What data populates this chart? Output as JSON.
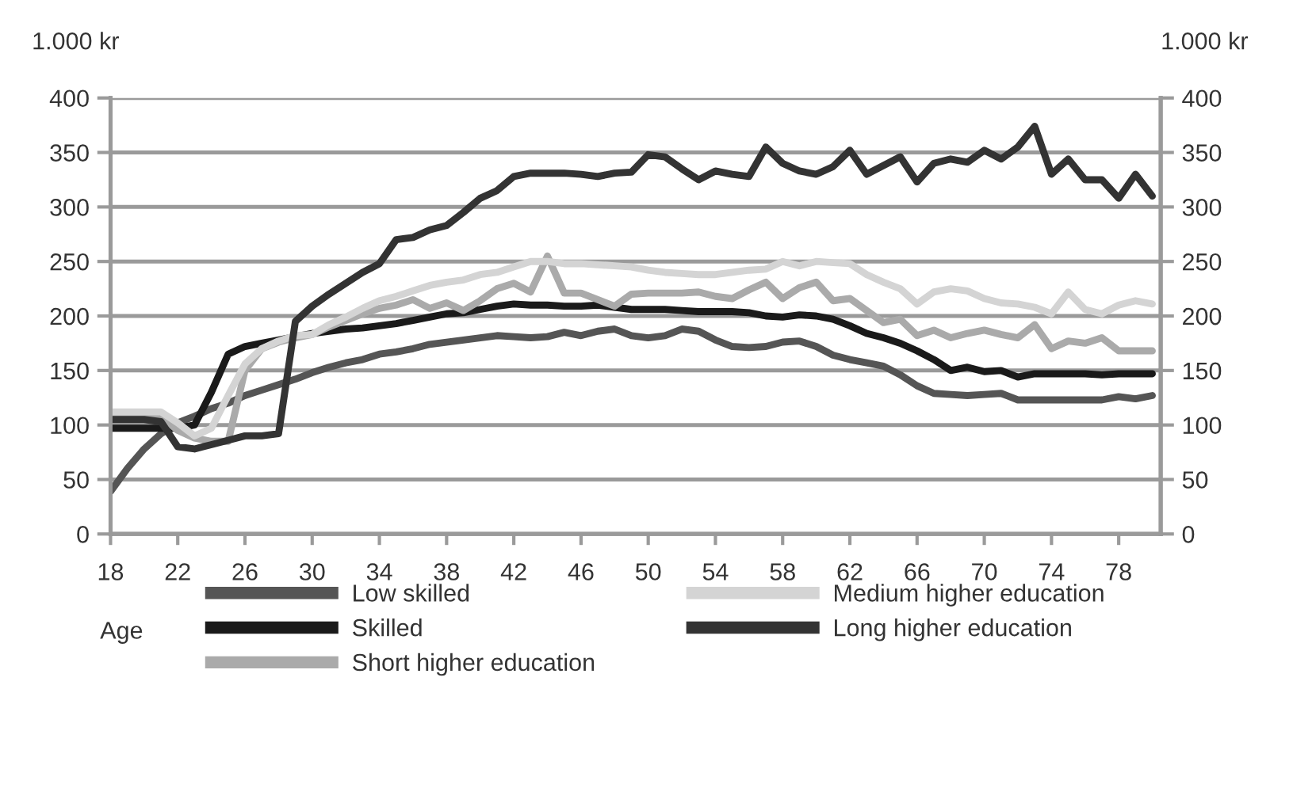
{
  "chart_data": {
    "type": "line",
    "xlabel": "Age",
    "ylabel": "1.000 kr",
    "y2label": "1.000 kr",
    "x": [
      18,
      19,
      20,
      21,
      22,
      23,
      24,
      25,
      26,
      27,
      28,
      29,
      30,
      31,
      32,
      33,
      34,
      35,
      36,
      37,
      38,
      39,
      40,
      41,
      42,
      43,
      44,
      45,
      46,
      47,
      48,
      49,
      50,
      51,
      52,
      53,
      54,
      55,
      56,
      57,
      58,
      59,
      60,
      61,
      62,
      63,
      64,
      65,
      66,
      67,
      68,
      69,
      70,
      71,
      72,
      73,
      74,
      75,
      76,
      77,
      78,
      79,
      80
    ],
    "series": [
      {
        "name": "Low skilled",
        "color": "#555555",
        "values": [
          39,
          60,
          78,
          92,
          102,
          108,
          115,
          120,
          127,
          132,
          137,
          142,
          148,
          153,
          157,
          160,
          165,
          167,
          170,
          174,
          176,
          178,
          180,
          182,
          181,
          180,
          181,
          185,
          182,
          186,
          188,
          182,
          180,
          182,
          188,
          186,
          178,
          172,
          171,
          172,
          176,
          177,
          172,
          164,
          160,
          157,
          154,
          146,
          136,
          129,
          128,
          127,
          128,
          129,
          123,
          123,
          123,
          123,
          123,
          123,
          126,
          124,
          127
        ]
      },
      {
        "name": "Skilled",
        "color": "#1a1a1a",
        "values": [
          97,
          97,
          97,
          97,
          97,
          100,
          130,
          165,
          172,
          175,
          178,
          181,
          184,
          186,
          188,
          189,
          191,
          193,
          196,
          199,
          202,
          203,
          206,
          209,
          211,
          210,
          210,
          209,
          209,
          210,
          208,
          206,
          206,
          206,
          205,
          204,
          204,
          204,
          203,
          200,
          199,
          201,
          200,
          197,
          191,
          184,
          180,
          175,
          168,
          160,
          150,
          153,
          149,
          150,
          144,
          147,
          147,
          147,
          147,
          146,
          147,
          147,
          147
        ]
      },
      {
        "name": "Short higher education",
        "color": "#aaaaaa",
        "values": [
          110,
          110,
          110,
          108,
          95,
          88,
          85,
          85,
          150,
          170,
          176,
          180,
          183,
          190,
          196,
          202,
          207,
          210,
          215,
          207,
          212,
          205,
          214,
          225,
          230,
          222,
          255,
          221,
          221,
          215,
          209,
          220,
          221,
          221,
          221,
          222,
          218,
          216,
          224,
          231,
          216,
          226,
          231,
          214,
          216,
          205,
          194,
          197,
          182,
          187,
          180,
          184,
          187,
          183,
          180,
          192,
          170,
          177,
          175,
          180,
          168,
          168,
          168
        ]
      },
      {
        "name": "Medium higher education",
        "color": "#d4d4d4",
        "values": [
          112,
          112,
          112,
          112,
          102,
          90,
          97,
          127,
          156,
          170,
          177,
          182,
          183,
          192,
          199,
          207,
          214,
          218,
          223,
          228,
          231,
          233,
          238,
          240,
          245,
          250,
          250,
          248,
          248,
          247,
          246,
          245,
          242,
          240,
          239,
          238,
          238,
          240,
          242,
          243,
          250,
          246,
          250,
          249,
          248,
          238,
          231,
          225,
          211,
          222,
          225,
          223,
          216,
          212,
          211,
          208,
          202,
          222,
          206,
          202,
          210,
          214,
          211
        ]
      },
      {
        "name": "Long higher education",
        "color": "#333333",
        "values": [
          105,
          105,
          105,
          103,
          80,
          78,
          82,
          86,
          90,
          90,
          92,
          195,
          209,
          220,
          230,
          240,
          248,
          270,
          272,
          279,
          283,
          295,
          308,
          315,
          328,
          331,
          331,
          331,
          330,
          328,
          331,
          332,
          348,
          346,
          335,
          325,
          333,
          330,
          328,
          355,
          340,
          333,
          330,
          337,
          352,
          330,
          338,
          346,
          323,
          340,
          344,
          341,
          352,
          344,
          355,
          374,
          330,
          344,
          325,
          325,
          308,
          330,
          310
        ]
      }
    ],
    "xlim": [
      18,
      80.5
    ],
    "xticks": [
      18,
      22,
      26,
      30,
      34,
      38,
      42,
      46,
      50,
      54,
      58,
      62,
      66,
      70,
      74,
      78
    ],
    "ylim": [
      0,
      400
    ],
    "yticks": [
      0,
      50,
      100,
      150,
      200,
      250,
      300,
      350,
      400
    ],
    "y2lim": [
      0,
      400
    ],
    "y2ticks": [
      0,
      50,
      100,
      150,
      200,
      250,
      300,
      350,
      400
    ],
    "grid": "y",
    "legend": "bottom",
    "marker": "none",
    "line_style": "solid"
  }
}
